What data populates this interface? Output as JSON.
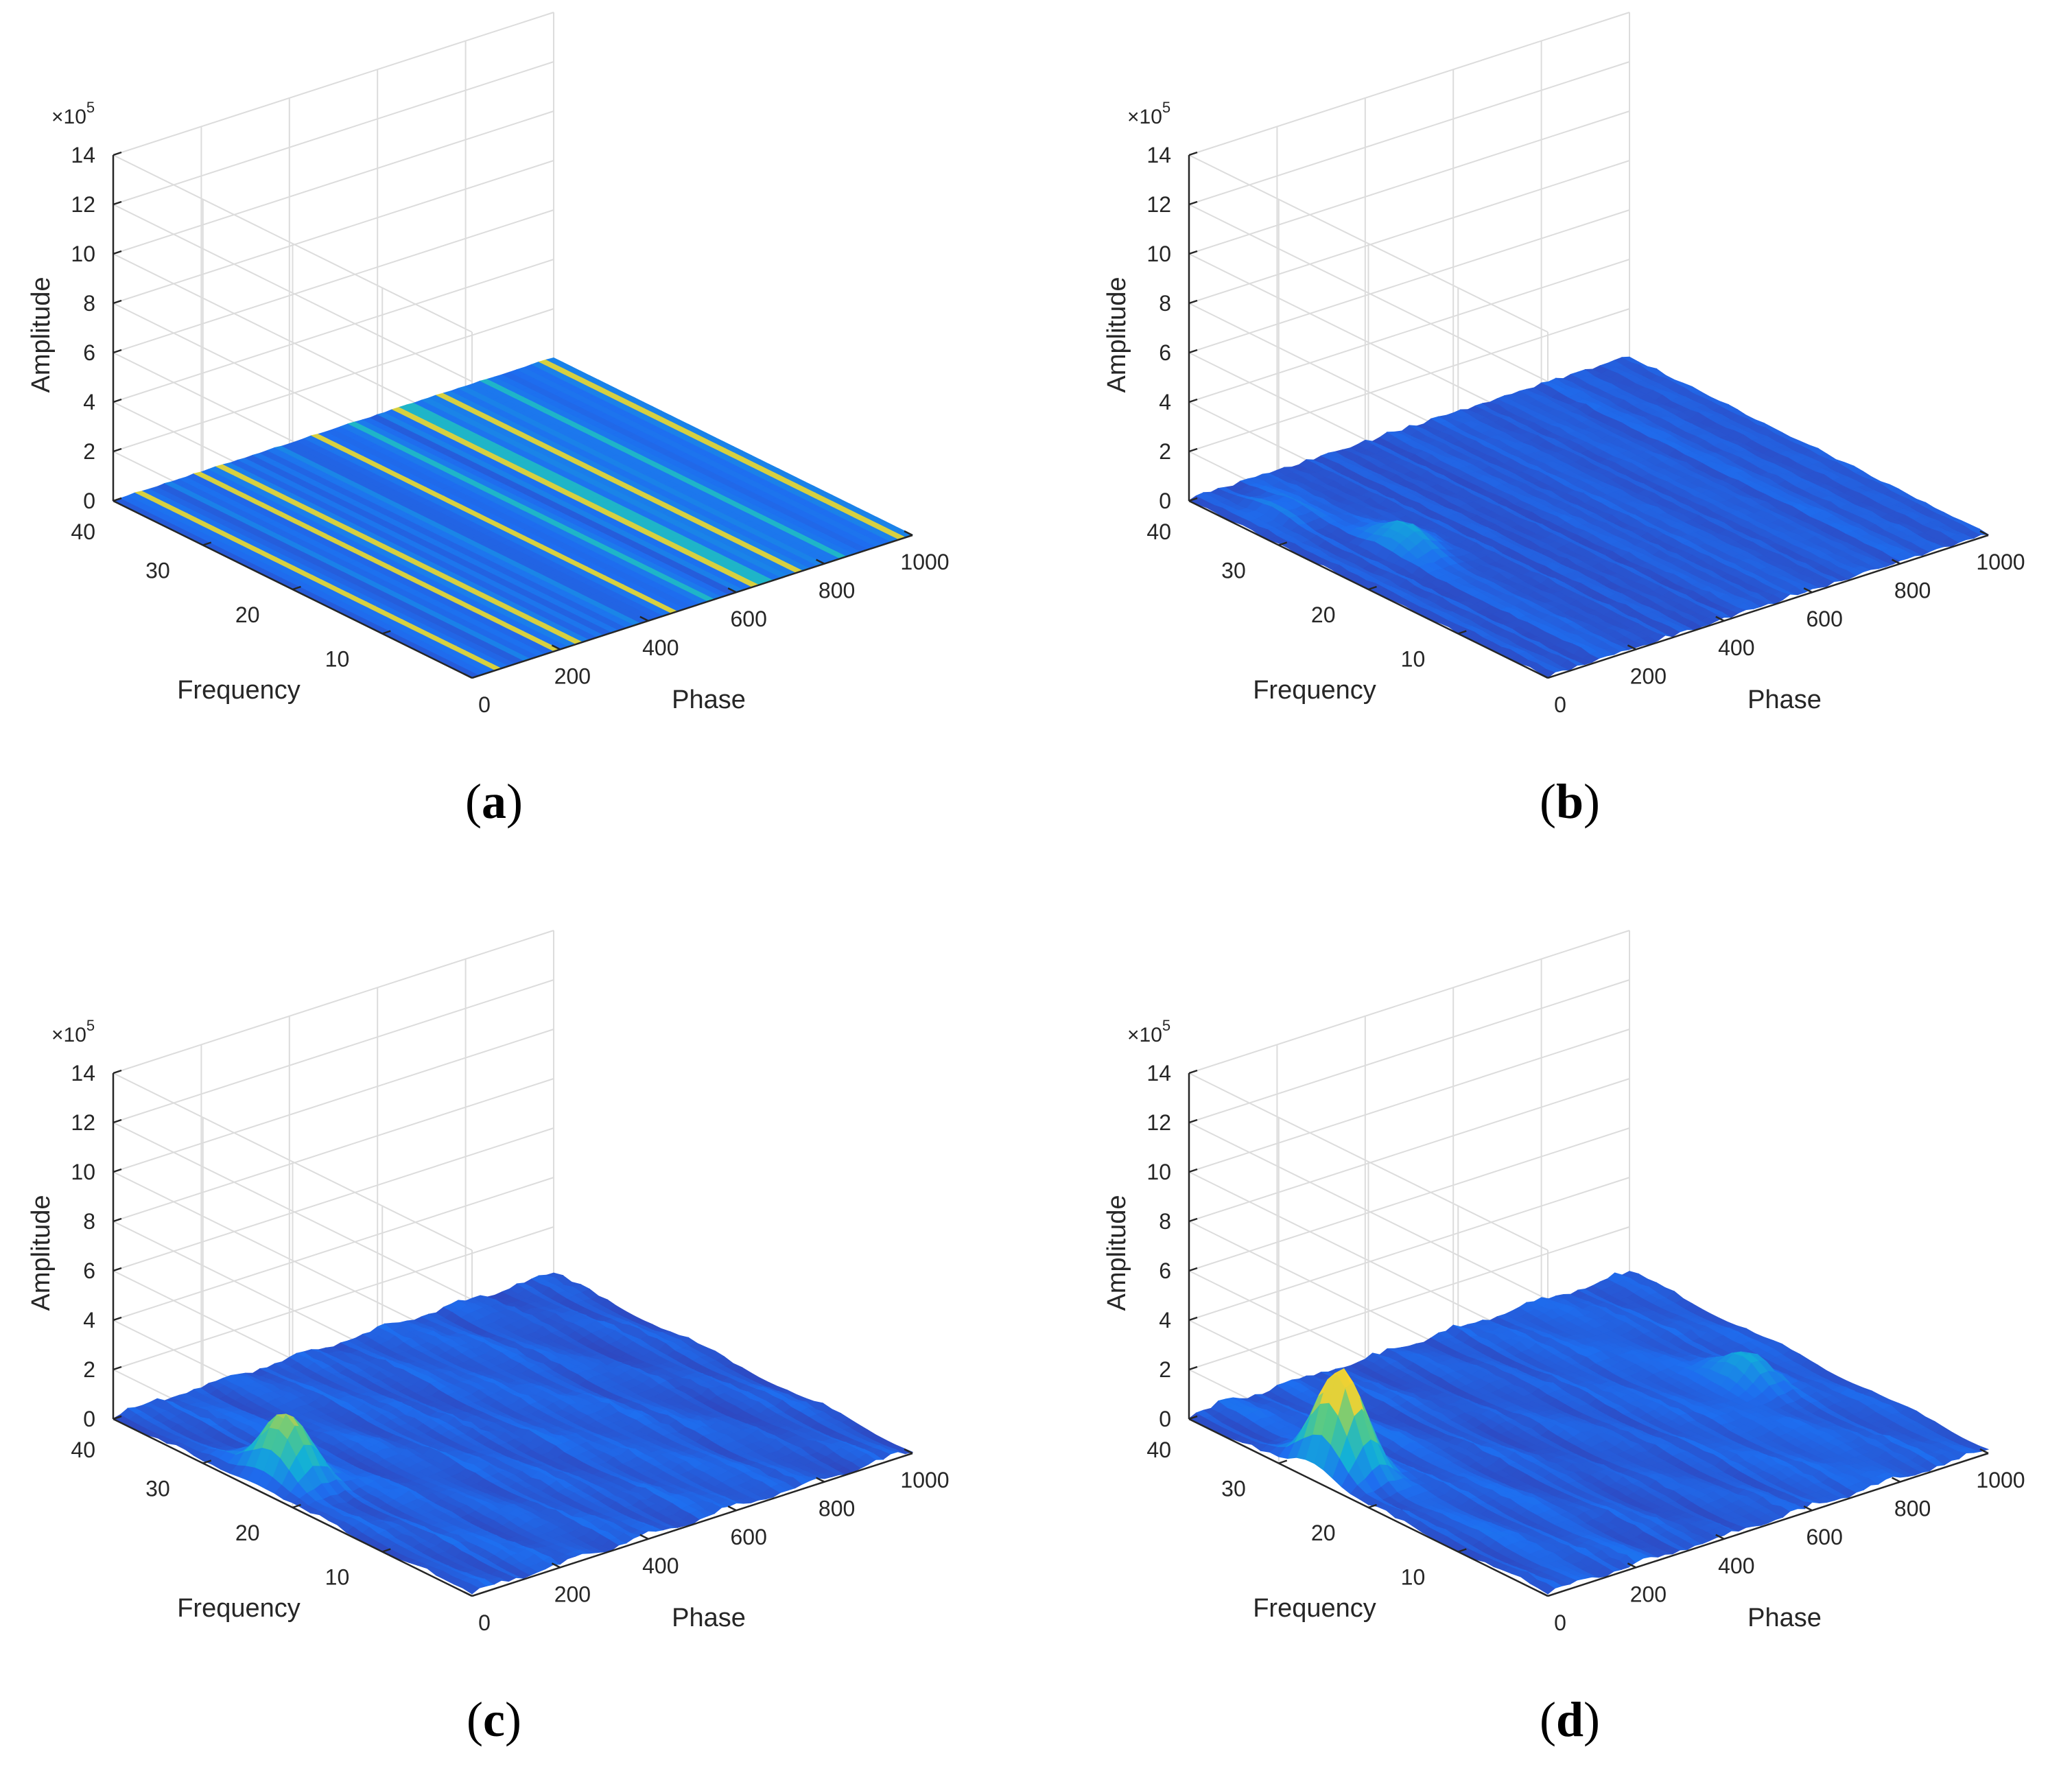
{
  "chart_data": [
    {
      "type": "surface",
      "panel_label": "(a)",
      "caption_letter": "a",
      "xlabel": "Phase",
      "ylabel": "Frequency",
      "zlabel": "Amplitude",
      "z_exponent_prefix": "×10",
      "z_exponent": "5",
      "x_ticks": [
        "0",
        "200",
        "400",
        "600",
        "800",
        "1000"
      ],
      "y_ticks": [
        "10",
        "20",
        "30",
        "40"
      ],
      "z_ticks": [
        "0",
        "2",
        "4",
        "6",
        "8",
        "10",
        "12",
        "14"
      ],
      "xlim": [
        0,
        1000
      ],
      "ylim": [
        0,
        40
      ],
      "zlim": [
        0,
        14
      ],
      "grid": true,
      "colormap": [
        "#3b2a9b",
        "#1e6ef0",
        "#12b0d8",
        "#51c98a",
        "#f9d22d"
      ],
      "surface_style": "streaks",
      "peak_amplitude": 0.3,
      "peaks": []
    },
    {
      "type": "surface",
      "panel_label": "(b)",
      "caption_letter": "b",
      "xlabel": "Phase",
      "ylabel": "Frequency",
      "zlabel": "Amplitude",
      "z_exponent_prefix": "×10",
      "z_exponent": "5",
      "x_ticks": [
        "0",
        "200",
        "400",
        "600",
        "800",
        "1000"
      ],
      "y_ticks": [
        "10",
        "20",
        "30",
        "40"
      ],
      "z_ticks": [
        "0",
        "2",
        "4",
        "6",
        "8",
        "10",
        "12",
        "14"
      ],
      "xlim": [
        0,
        1000
      ],
      "ylim": [
        0,
        40
      ],
      "zlim": [
        0,
        14
      ],
      "grid": true,
      "colormap": [
        "#3b2a9b",
        "#1e6ef0",
        "#12b0d8",
        "#51c98a",
        "#f9d22d"
      ],
      "surface_style": "ridges",
      "peak_amplitude": 1.2,
      "peaks": [
        {
          "phase": 170,
          "frequency": 24,
          "amplitude": 0.8
        },
        {
          "phase": 90,
          "frequency": 34,
          "amplitude": 0.4
        }
      ]
    },
    {
      "type": "surface",
      "panel_label": "(c)",
      "caption_letter": "c",
      "xlabel": "Phase",
      "ylabel": "Frequency",
      "zlabel": "Amplitude",
      "z_exponent_prefix": "×10",
      "z_exponent": "5",
      "x_ticks": [
        "0",
        "200",
        "400",
        "600",
        "800",
        "1000"
      ],
      "y_ticks": [
        "10",
        "20",
        "30",
        "40"
      ],
      "z_ticks": [
        "0",
        "2",
        "4",
        "6",
        "8",
        "10",
        "12",
        "14"
      ],
      "xlim": [
        0,
        1000
      ],
      "ylim": [
        0,
        40
      ],
      "zlim": [
        0,
        14
      ],
      "grid": true,
      "colormap": [
        "#3b2a9b",
        "#1e6ef0",
        "#12b0d8",
        "#51c98a",
        "#f9d22d"
      ],
      "surface_style": "smooth",
      "peak_amplitude": 1.3,
      "peaks": [
        {
          "phase": 70,
          "frequency": 24,
          "amplitude": 2.5
        }
      ]
    },
    {
      "type": "surface",
      "panel_label": "(d)",
      "caption_letter": "d",
      "xlabel": "Phase",
      "ylabel": "Frequency",
      "zlabel": "Amplitude",
      "z_exponent_prefix": "×10",
      "z_exponent": "5",
      "x_ticks": [
        "0",
        "200",
        "400",
        "600",
        "800",
        "1000"
      ],
      "y_ticks": [
        "10",
        "20",
        "30",
        "40"
      ],
      "z_ticks": [
        "0",
        "2",
        "4",
        "6",
        "8",
        "10",
        "12",
        "14"
      ],
      "xlim": [
        0,
        1000
      ],
      "ylim": [
        0,
        40
      ],
      "zlim": [
        0,
        14
      ],
      "grid": true,
      "colormap": [
        "#3b2a9b",
        "#1e6ef0",
        "#12b0d8",
        "#51c98a",
        "#f9d22d"
      ],
      "surface_style": "smooth",
      "peak_amplitude": 1.5,
      "peaks": [
        {
          "phase": 60,
          "frequency": 26,
          "amplitude": 4.0
        },
        {
          "phase": 860,
          "frequency": 20,
          "amplitude": 1.0
        }
      ]
    }
  ]
}
